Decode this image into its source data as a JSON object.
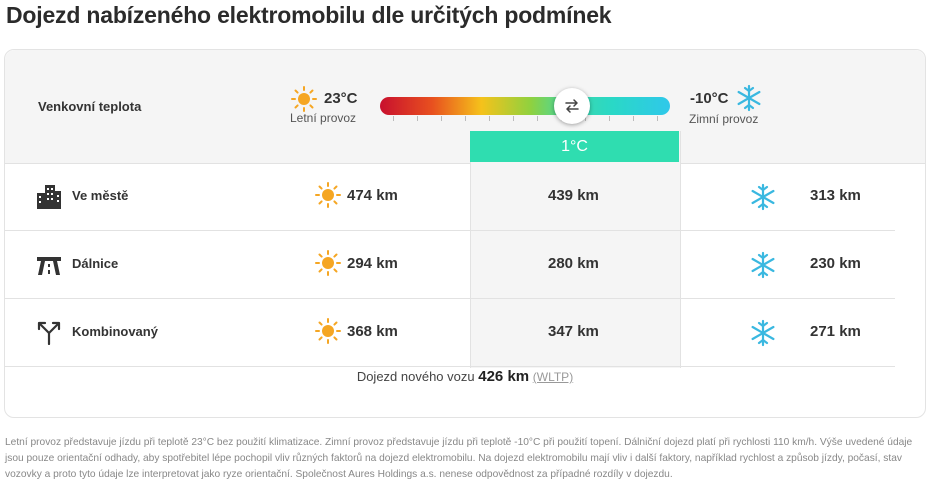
{
  "title": "Dojezd nabízeného elektromobilu dle určitých podmínek",
  "temperature": {
    "label": "Venkovní teplota",
    "summer": {
      "temp": "23°C",
      "mode": "Letní provoz"
    },
    "winter": {
      "temp": "-10°C",
      "mode": "Zimní provoz"
    },
    "current": "1°C",
    "slider_icon": "swap-arrows-icon"
  },
  "rows": [
    {
      "label": "Ve městě",
      "icon": "city-buildings-icon",
      "summer": "474 km",
      "current": "439 km",
      "winter": "313 km"
    },
    {
      "label": "Dálnice",
      "icon": "highway-icon",
      "summer": "294 km",
      "current": "280 km",
      "winter": "230 km"
    },
    {
      "label": "Kombinovaný",
      "icon": "split-route-icon",
      "summer": "368 km",
      "current": "347 km",
      "winter": "271 km"
    }
  ],
  "footer": {
    "prefix": "Dojezd nového vozu",
    "range": "426 km",
    "standard": "(WLTP)"
  },
  "disclaimer": "Letní provoz představuje jízdu při teplotě 23°C bez použití klimatizace. Zimní provoz představuje jízdu při teplotě -10°C při použití topení. Dálniční dojezd platí při rychlosti 110 km/h. Výše uvedené údaje jsou pouze orientační odhady, aby spotřebitel lépe pochopil vliv různých faktorů na dojezd elektromobilu. Na dojezd elektromobilu mají vliv i další faktory, například rychlost a způsob jízdy, počasí, stav vozovky a proto tyto údaje lze interpretovat jako ryze orientační. Společnost Aures Holdings a.s. nenese odpovědnost za případné rozdíly v dojezdu.",
  "colors": {
    "accent": "#2fddb0",
    "sun": "#f5a623",
    "snow": "#3ab8e0"
  }
}
